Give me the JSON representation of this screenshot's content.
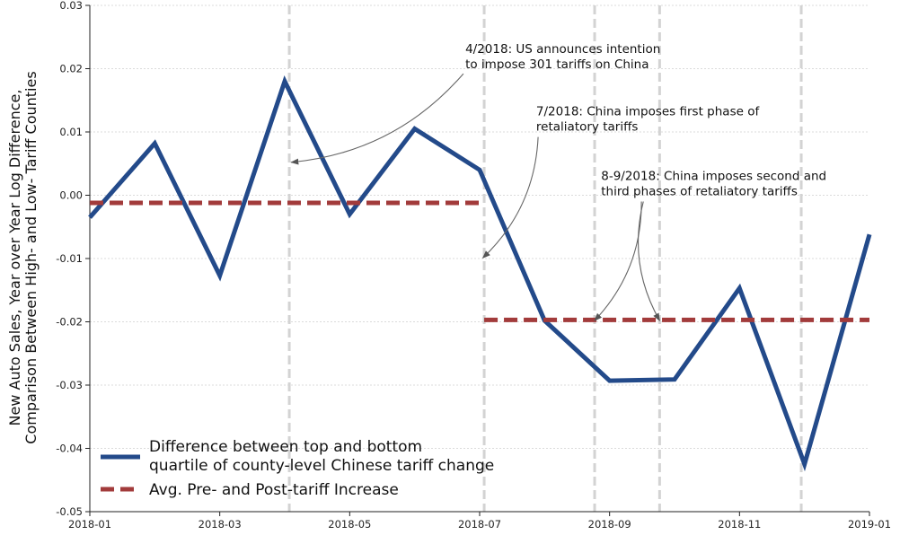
{
  "chart_data": {
    "type": "line",
    "title": "",
    "partial_top_text": "                                                                          ",
    "ylabel_line1": "New Auto Sales, Year over Year Log Difference,",
    "ylabel_line2": "Comparison Between High- and Low- Tariff Counties",
    "xlabel": "",
    "xlim": [
      "2018-01",
      "2019-01"
    ],
    "ylim": [
      -0.05,
      0.03
    ],
    "y_ticks": [
      {
        "value": 0.03,
        "label": "0.03"
      },
      {
        "value": 0.02,
        "label": "0.02"
      },
      {
        "value": 0.01,
        "label": "0.01"
      },
      {
        "value": 0.0,
        "label": "0.00"
      },
      {
        "value": -0.01,
        "label": "-0.01"
      },
      {
        "value": -0.02,
        "label": "-0.02"
      },
      {
        "value": -0.03,
        "label": "-0.03"
      },
      {
        "value": -0.04,
        "label": "-0.04"
      },
      {
        "value": -0.05,
        "label": "-0.05"
      }
    ],
    "x_ticks": [
      {
        "value": 0,
        "label": "2018-01"
      },
      {
        "value": 2,
        "label": "2018-03"
      },
      {
        "value": 4,
        "label": "2018-05"
      },
      {
        "value": 6,
        "label": "2018-07"
      },
      {
        "value": 8,
        "label": "2018-09"
      },
      {
        "value": 10,
        "label": "2018-11"
      },
      {
        "value": 12,
        "label": "2019-01"
      }
    ],
    "grid": true,
    "legend_position": "bottom-left",
    "series": [
      {
        "name": "Difference between top and bottom quartile of county-level Chinese tariff change",
        "legend_line1": "Difference between top and bottom",
        "legend_line2": "quartile of county-level Chinese tariff change",
        "color": "#234a8a",
        "style": "solid",
        "points": [
          {
            "x": 0,
            "y": -0.0035
          },
          {
            "x": 1,
            "y": 0.0082
          },
          {
            "x": 2,
            "y": -0.0127
          },
          {
            "x": 3,
            "y": 0.018
          },
          {
            "x": 4,
            "y": -0.003
          },
          {
            "x": 5,
            "y": 0.0105
          },
          {
            "x": 6,
            "y": 0.004
          },
          {
            "x": 7,
            "y": -0.0198
          },
          {
            "x": 8,
            "y": -0.0293
          },
          {
            "x": 9,
            "y": -0.0291
          },
          {
            "x": 10,
            "y": -0.0147
          },
          {
            "x": 11,
            "y": -0.0425
          },
          {
            "x": 12,
            "y": -0.0062
          }
        ]
      },
      {
        "name": "Avg. Pre- and Post-tariff Increase",
        "legend_line1": "Avg. Pre- and Post-tariff Increase",
        "color": "#a23b3b",
        "style": "dashed",
        "segments": [
          {
            "x_start": 0,
            "x_end": 6.07,
            "y": -0.0012
          },
          {
            "x_start": 6.07,
            "x_end": 12,
            "y": -0.0197
          }
        ]
      }
    ],
    "event_lines": [
      3.07,
      6.07,
      7.77,
      8.77,
      10.95
    ],
    "annotations": [
      {
        "lines": [
          "4/2018: US announces intention",
          "to impose 301 tariffs on China"
        ],
        "text_x": 5.78,
        "text_y": 0.0225,
        "arrow_from": [
          5.75,
          0.0192
        ],
        "arrow_to": [
          3.1,
          0.0052
        ],
        "rad": 0.2
      },
      {
        "lines": [
          "7/2018: China imposes first phase of",
          "retaliatory tariffs"
        ],
        "text_x": 6.87,
        "text_y": 0.0126,
        "arrow_from": [
          6.9,
          0.0092
        ],
        "arrow_to": [
          6.05,
          -0.0099
        ],
        "rad": 0.2
      },
      {
        "lines": [
          "8-9/2018: China imposes second and",
          "third phases of retaliatory tariffs"
        ],
        "text_x": 7.87,
        "text_y": 0.0024,
        "arrow_from": [
          8.49,
          -0.001
        ],
        "arrow_to": [
          7.77,
          -0.0198
        ],
        "rad": 0.2
      },
      {
        "lines": [],
        "arrow_from": [
          8.52,
          -0.001
        ],
        "arrow_to": [
          8.77,
          -0.0198
        ],
        "rad": -0.2
      }
    ]
  }
}
